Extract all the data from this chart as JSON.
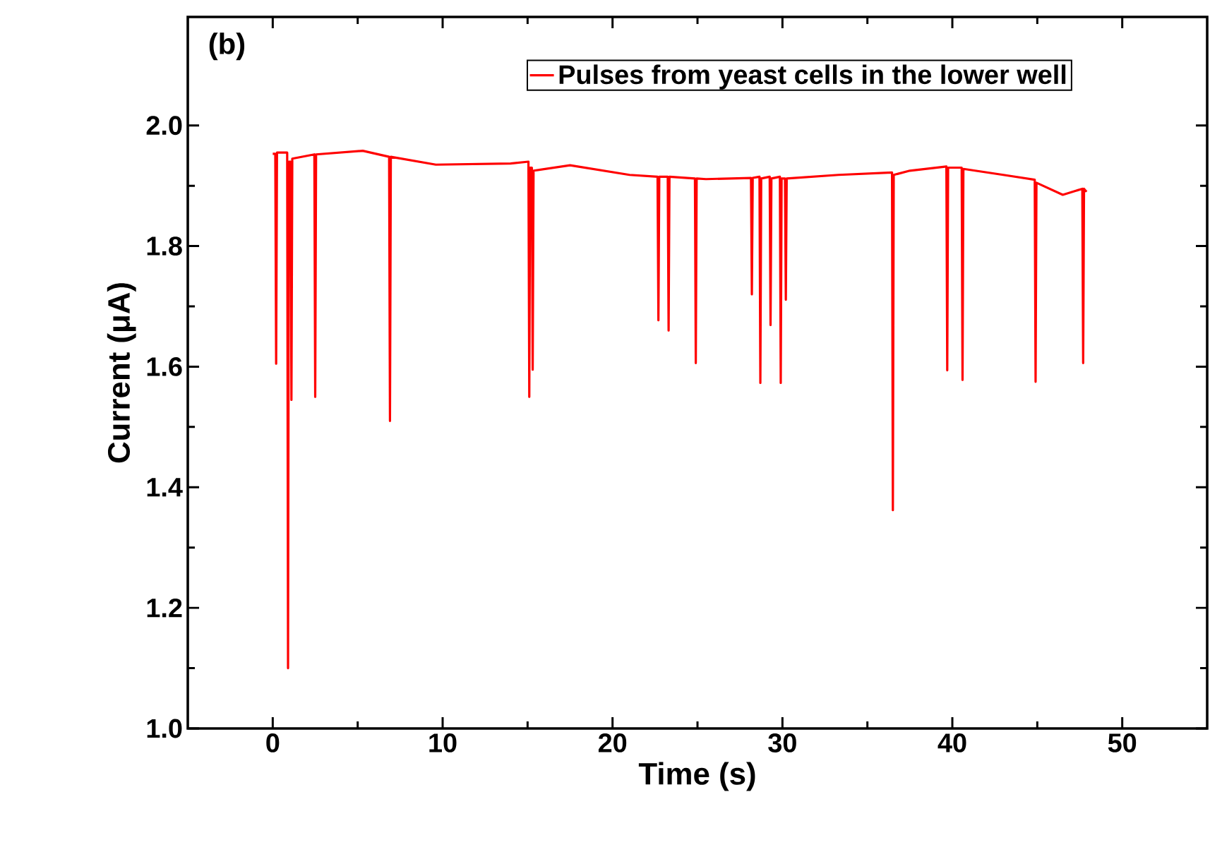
{
  "chart_data": {
    "type": "line",
    "xlabel": "Time (s)",
    "ylabel": "Current (μA)",
    "annotations": [
      "(b)"
    ],
    "xlim": [
      -5,
      55
    ],
    "ylim": [
      1.0,
      2.18
    ],
    "xticks": [
      0,
      10,
      20,
      30,
      40,
      50
    ],
    "yticks": [
      {
        "value": 1.0,
        "label": "1.0"
      },
      {
        "value": 1.2,
        "label": "1.2"
      },
      {
        "value": 1.4,
        "label": "1.4"
      },
      {
        "value": 1.6,
        "label": "1.6"
      },
      {
        "value": 1.8,
        "label": "1.8"
      },
      {
        "value": 2.0,
        "label": "2.0"
      }
    ],
    "grid": false,
    "legend": "top",
    "marker": "none",
    "line_style": "solid",
    "series": [
      {
        "name": "Pulses from yeast cells in  the lower well",
        "color": "#ff0000",
        "x": [
          0,
          0.15,
          0.2,
          0.25,
          0.85,
          0.9,
          0.95,
          1.05,
          1.1,
          1.15,
          2.45,
          2.5,
          2.55,
          5.3,
          6.85,
          6.9,
          6.95,
          9.6,
          14,
          15.05,
          15.1,
          15.15,
          15.25,
          15.3,
          15.35,
          17.5,
          21,
          22.65,
          22.7,
          22.75,
          23.25,
          23.3,
          23.35,
          24.85,
          24.9,
          24.95,
          25.5,
          28.15,
          28.2,
          28.25,
          28.65,
          28.7,
          28.75,
          29.25,
          29.3,
          29.35,
          29.85,
          29.9,
          29.95,
          30.15,
          30.2,
          30.25,
          33.3,
          36.45,
          36.5,
          36.55,
          37.5,
          39.65,
          39.7,
          39.75,
          40.55,
          40.6,
          40.65,
          43,
          44.85,
          44.9,
          44.95,
          46.5,
          47.65,
          47.7,
          47.75,
          47.9
        ],
        "values": [
          1.953,
          1.953,
          1.605,
          1.955,
          1.955,
          1.1,
          1.94,
          1.94,
          1.545,
          1.945,
          1.952,
          1.55,
          1.952,
          1.958,
          1.948,
          1.51,
          1.948,
          1.935,
          1.937,
          1.94,
          1.55,
          1.93,
          1.93,
          1.595,
          1.925,
          1.934,
          1.918,
          1.915,
          1.677,
          1.915,
          1.915,
          1.66,
          1.915,
          1.912,
          1.606,
          1.912,
          1.911,
          1.913,
          1.72,
          1.913,
          1.915,
          1.573,
          1.912,
          1.915,
          1.669,
          1.912,
          1.915,
          1.573,
          1.912,
          1.912,
          1.711,
          1.912,
          1.918,
          1.922,
          1.362,
          1.918,
          1.925,
          1.932,
          1.594,
          1.93,
          1.93,
          1.578,
          1.928,
          1.918,
          1.91,
          1.575,
          1.905,
          1.885,
          1.895,
          1.606,
          1.895,
          1.89
        ]
      }
    ]
  }
}
